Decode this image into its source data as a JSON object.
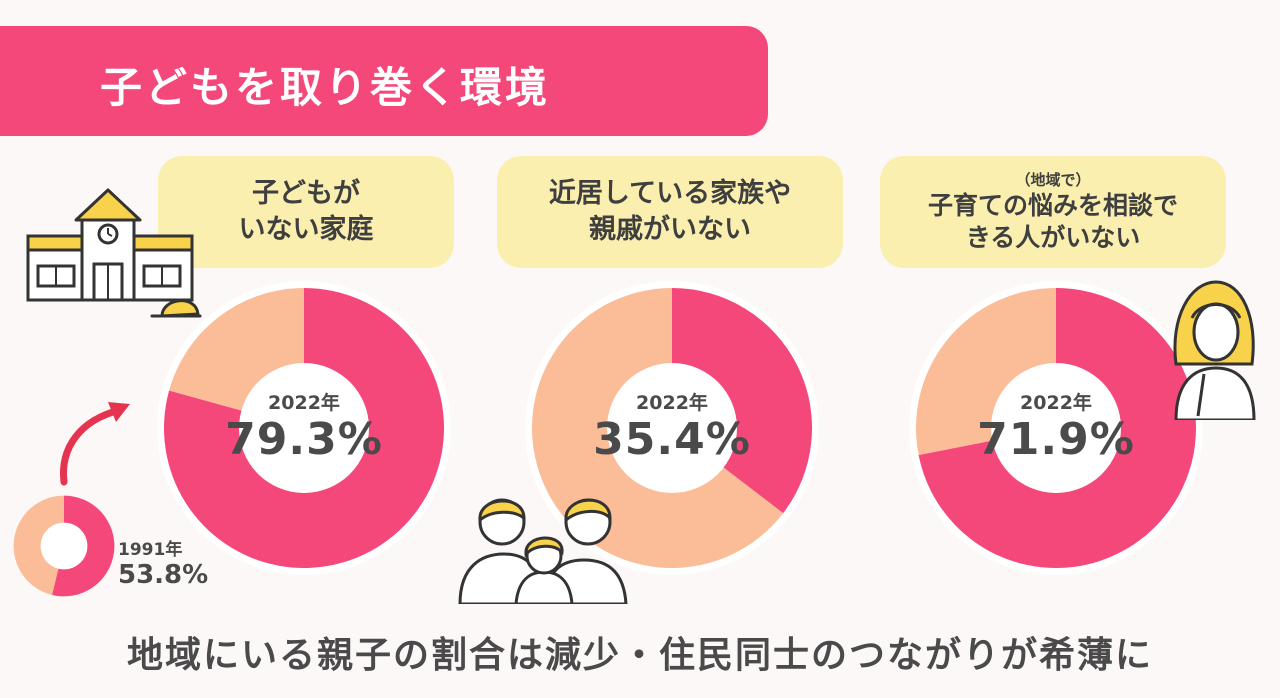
{
  "title": "子どもを取り巻く環境",
  "footer": "地域にいる親子の割合は減少・住民同士のつながりが希薄に",
  "colors": {
    "accent": "#f4477a",
    "secondary": "#fbbc98",
    "label_bg": "#fbefb0"
  },
  "chart_data": [
    {
      "type": "pie",
      "label_lines": [
        "子どもが",
        "いない家庭"
      ],
      "year": "2022年",
      "percent_text": "79.3%",
      "value": 79.3
    },
    {
      "type": "pie",
      "label_lines": [
        "近居している家族や",
        "親戚がいない"
      ],
      "year": "2022年",
      "percent_text": "35.4%",
      "value": 35.4
    },
    {
      "type": "pie",
      "label_small": "（地域で）",
      "label_lines": [
        "子育ての悩みを相談で",
        "きる人がいない"
      ],
      "year": "2022年",
      "percent_text": "71.9%",
      "value": 71.9
    },
    {
      "type": "pie",
      "year": "1991年",
      "percent_text": "53.8%",
      "value": 53.8
    }
  ],
  "icons": [
    "school-icon",
    "cap-icon",
    "curved-arrow-icon",
    "family-icon",
    "worried-woman-icon"
  ]
}
